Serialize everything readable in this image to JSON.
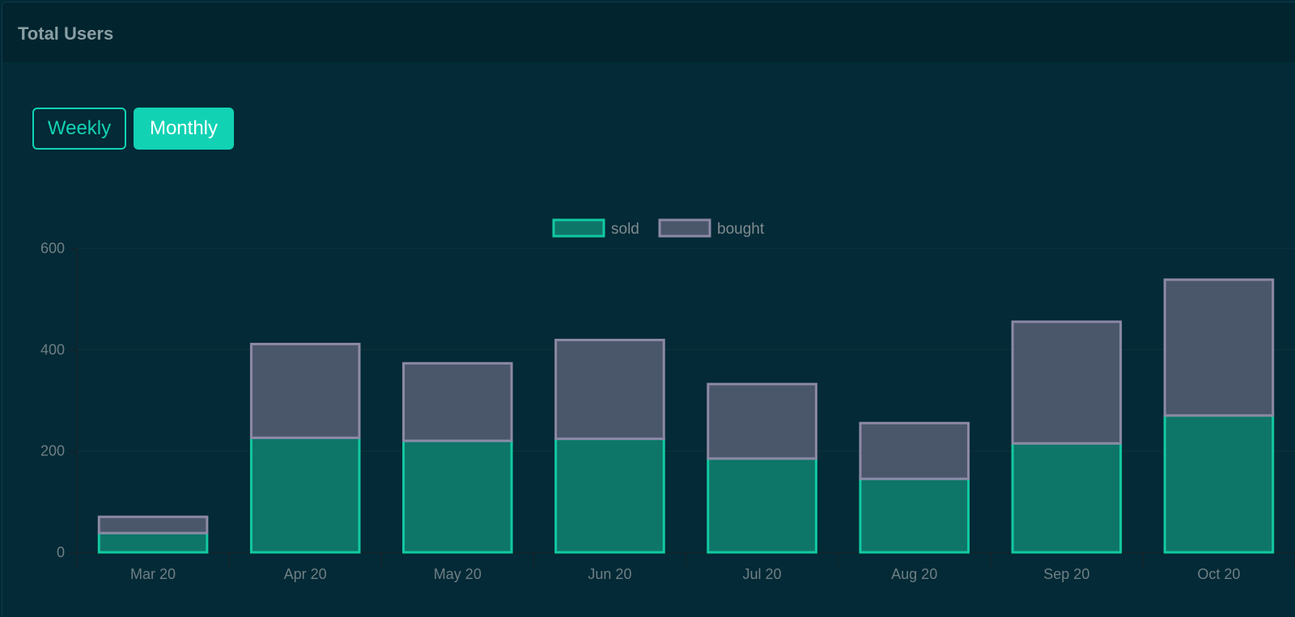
{
  "header": {
    "title": "Total Users"
  },
  "controls": {
    "weekly_label": "Weekly",
    "monthly_label": "Monthly",
    "active": "Monthly"
  },
  "chart_data": {
    "type": "bar",
    "stacked": true,
    "categories": [
      "Mar 20",
      "Apr 20",
      "May 20",
      "Jun 20",
      "Jul 20",
      "Aug 20",
      "Sep 20",
      "Oct 20"
    ],
    "series": [
      {
        "name": "sold",
        "values": [
          38,
          226,
          220,
          224,
          185,
          145,
          215,
          270
        ],
        "fill": "#0e7569",
        "stroke": "#12c9a1"
      },
      {
        "name": "bought",
        "values": [
          32,
          185,
          153,
          195,
          147,
          110,
          240,
          268
        ],
        "fill": "#4a576a",
        "stroke": "#8d89a6"
      }
    ],
    "ylim": [
      0,
      600
    ],
    "yticks": [
      0,
      200,
      400,
      600
    ],
    "grid": true,
    "legend": "top-center",
    "title": "",
    "xlabel": "",
    "ylabel": ""
  }
}
